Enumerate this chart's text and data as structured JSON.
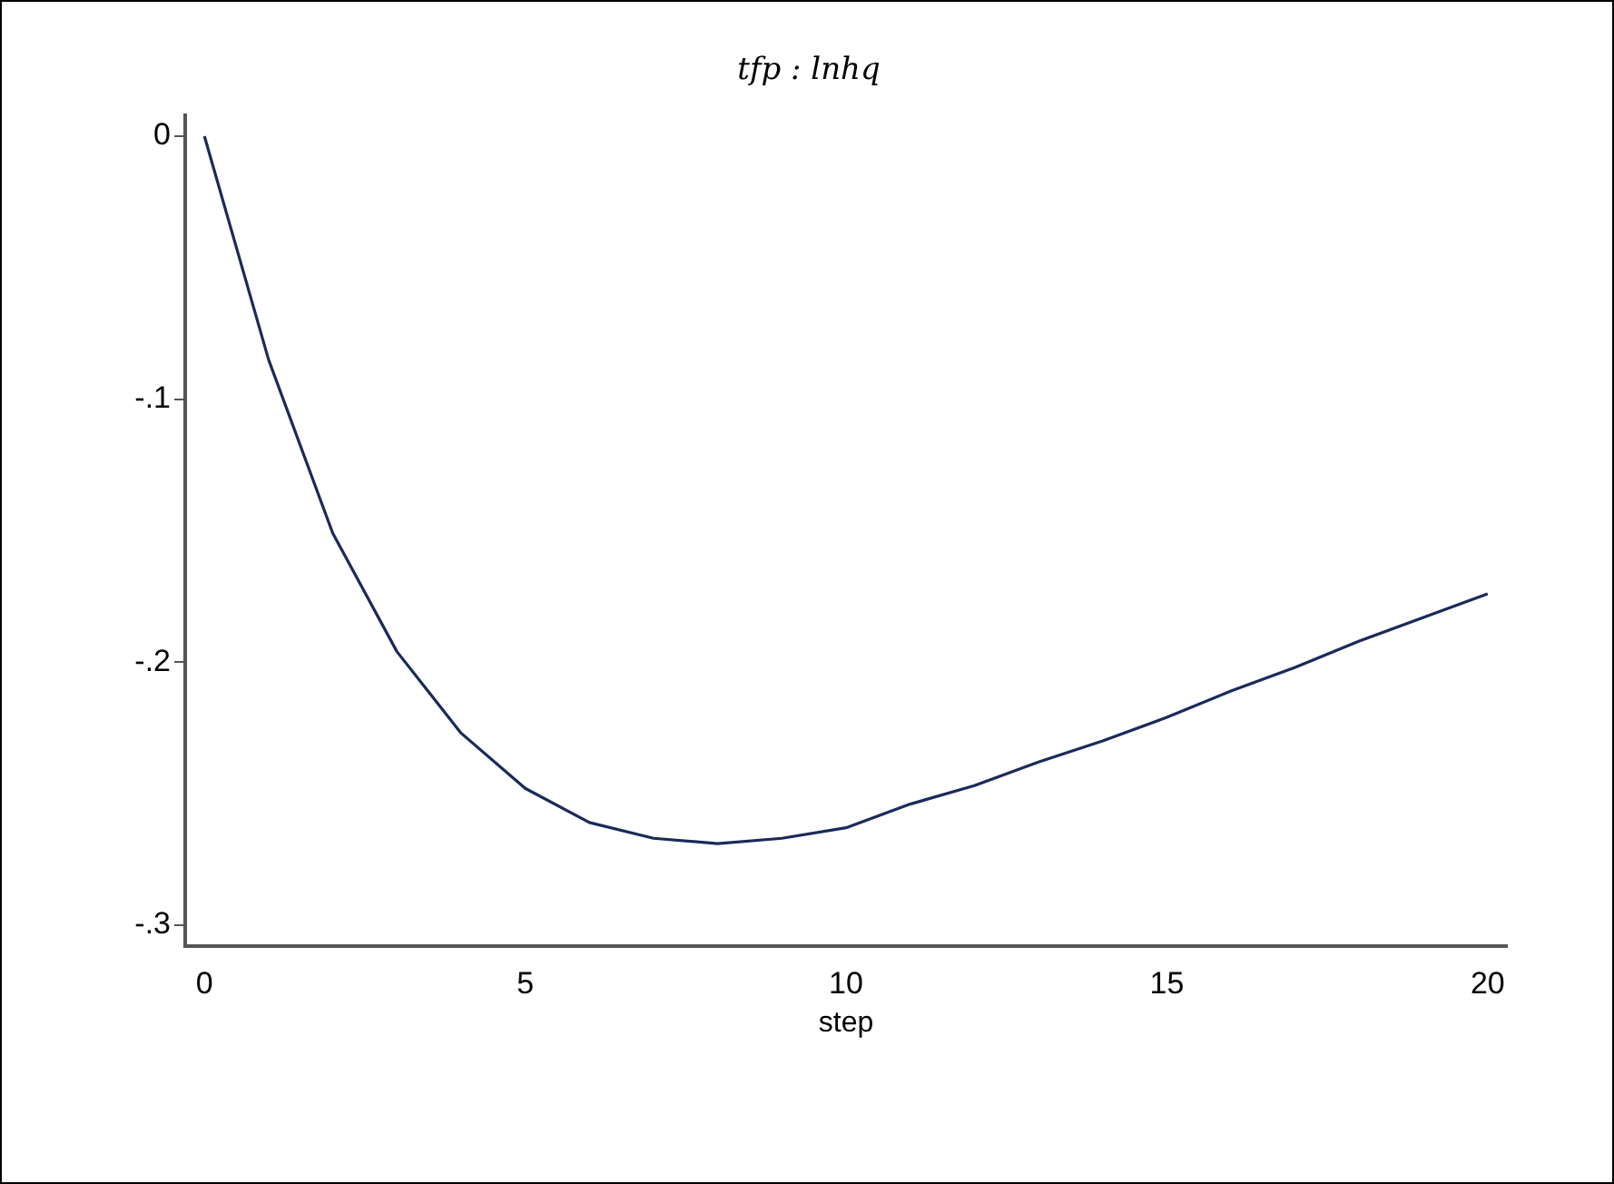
{
  "chart_data": {
    "type": "line",
    "title": "tfp : lnhq",
    "xlabel": "step",
    "x": [
      0,
      1,
      2,
      3,
      4,
      5,
      6,
      7,
      8,
      9,
      10,
      11,
      12,
      13,
      14,
      15,
      16,
      17,
      18,
      19,
      20
    ],
    "series": [
      {
        "color": "#1a2a5a",
        "values": [
          0,
          -0.085,
          -0.151,
          -0.196,
          -0.227,
          -0.248,
          -0.261,
          -0.267,
          -0.269,
          -0.267,
          -0.263,
          -0.254,
          -0.247,
          -0.238,
          -0.23,
          -0.221,
          -0.211,
          -0.202,
          -0.192,
          -0.183,
          -0.174
        ]
      }
    ],
    "xlim": [
      -0.3,
      20.3
    ],
    "ylim": [
      -0.308,
      0.008
    ],
    "xticks": [
      0,
      5,
      10,
      15,
      20
    ],
    "yticks": [
      0,
      {
        "value": -0.1,
        "label": "-.1"
      },
      {
        "value": -0.2,
        "label": "-.2"
      },
      {
        "value": -0.3,
        "label": "-.3"
      }
    ],
    "marker": "none"
  }
}
